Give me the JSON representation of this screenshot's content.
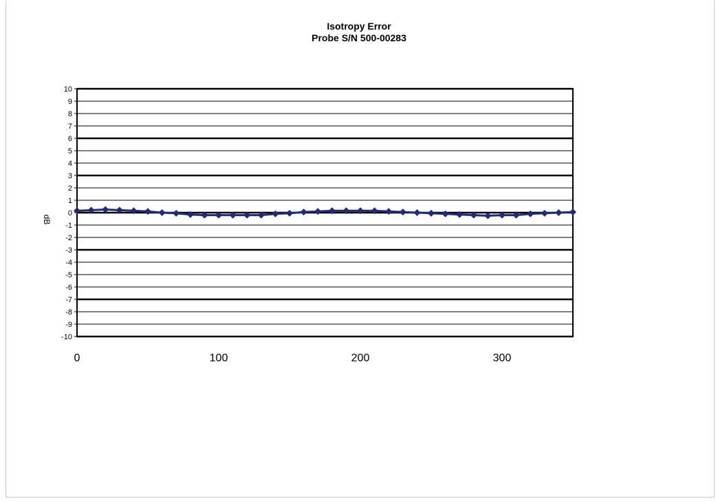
{
  "chart_data": {
    "type": "line",
    "title": "Isotropy Error",
    "subtitle": "Probe S/N 500-00283",
    "ylabel": "dB",
    "xlabel": "",
    "xlim": [
      0,
      350
    ],
    "ylim": [
      -10,
      10
    ],
    "x_ticks": [
      0,
      100,
      200,
      300
    ],
    "y_ticks": [
      10,
      9,
      8,
      7,
      6,
      5,
      4,
      3,
      2,
      1,
      0,
      -1,
      -2,
      -3,
      -4,
      -5,
      -6,
      -7,
      -8,
      -9,
      -10
    ],
    "bold_gridlines": [
      10,
      6,
      3,
      0,
      -3,
      -7,
      -10
    ],
    "grid": true,
    "series_color": "#1f2a7a",
    "series": [
      {
        "x": [
          0,
          10,
          20,
          30,
          40,
          50,
          60,
          70,
          80,
          90,
          100,
          110,
          120,
          130,
          140,
          150,
          160,
          170,
          180,
          190,
          200,
          210,
          220,
          230,
          240,
          250,
          260,
          270,
          280,
          290,
          300,
          310,
          320,
          330,
          340,
          350
        ],
        "values": [
          0.15,
          0.2,
          0.25,
          0.2,
          0.15,
          0.1,
          0.0,
          -0.05,
          -0.15,
          -0.2,
          -0.2,
          -0.2,
          -0.2,
          -0.2,
          -0.1,
          -0.05,
          0.05,
          0.1,
          0.15,
          0.15,
          0.15,
          0.15,
          0.1,
          0.05,
          0.0,
          -0.05,
          -0.1,
          -0.15,
          -0.2,
          -0.25,
          -0.2,
          -0.2,
          -0.1,
          -0.05,
          0.0,
          0.05
        ]
      }
    ]
  }
}
